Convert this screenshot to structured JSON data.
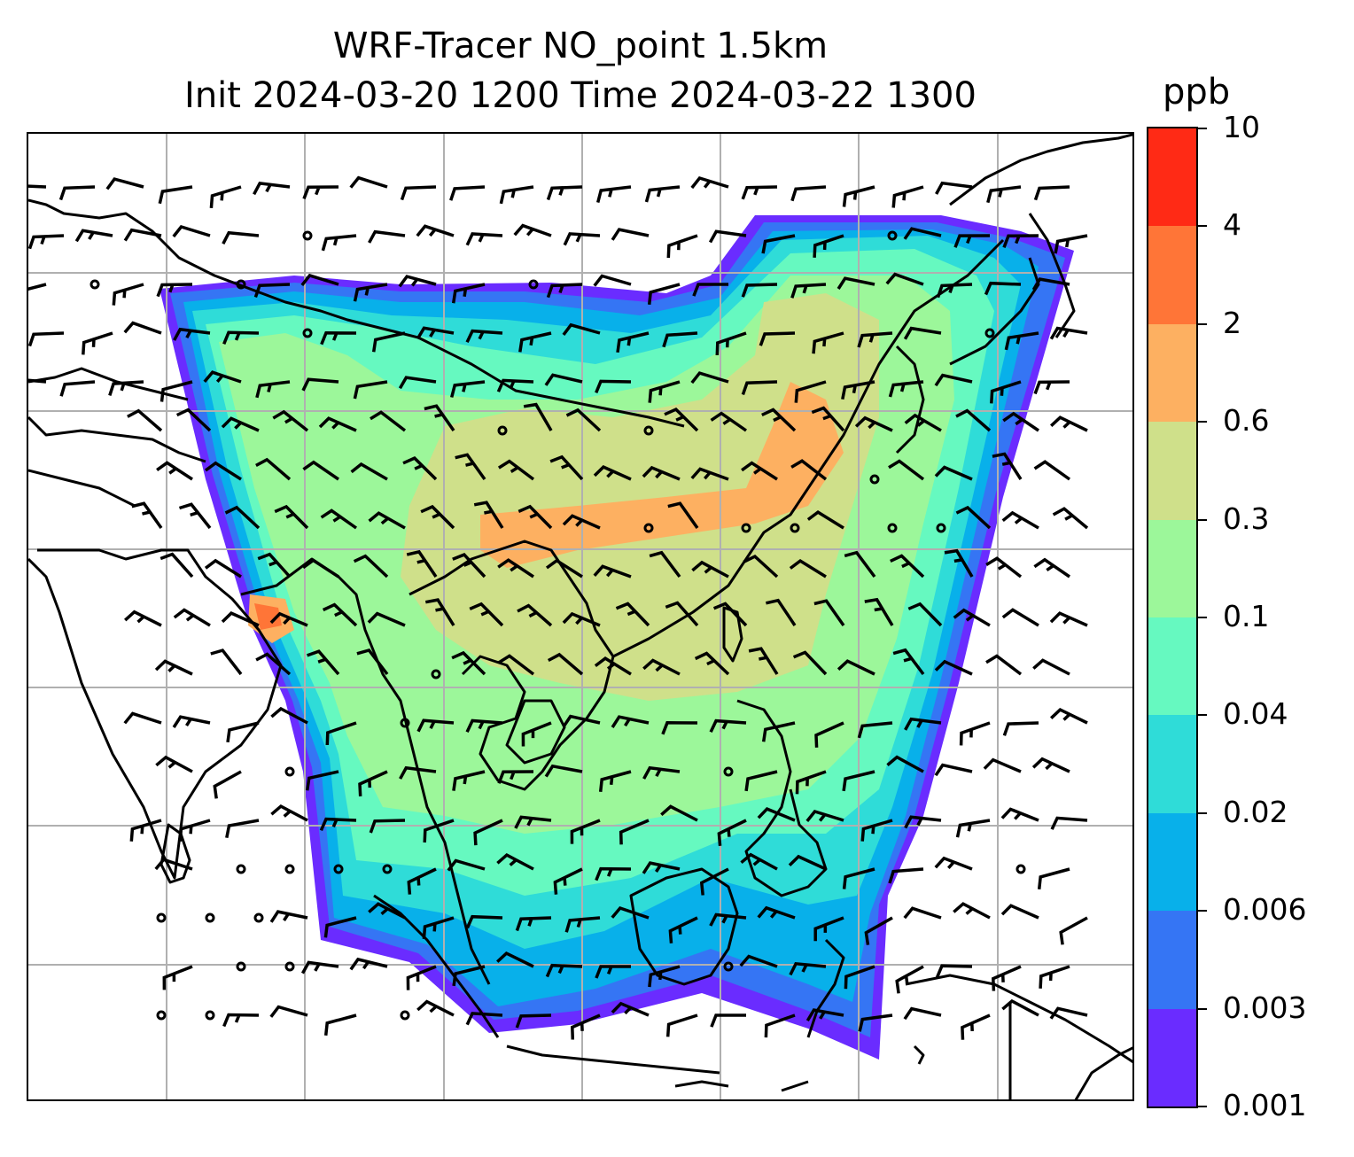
{
  "title": {
    "line1": "WRF-Tracer NO_point 1.5km",
    "line2": "Init 2024-03-20 1200 Time 2024-03-22 1300"
  },
  "colorbar": {
    "unit": "ppb",
    "levels": [
      {
        "label": "0.001",
        "color": "#6a2cff"
      },
      {
        "label": "0.003",
        "color": "#3575f4"
      },
      {
        "label": "0.006",
        "color": "#08b0ea"
      },
      {
        "label": "0.02",
        "color": "#2fdcd8"
      },
      {
        "label": "0.04",
        "color": "#66f9c0"
      },
      {
        "label": "0.1",
        "color": "#9cf79a"
      },
      {
        "label": "0.3",
        "color": "#cfe08a"
      },
      {
        "label": "0.6",
        "color": "#fdb061"
      },
      {
        "label": "2",
        "color": "#ff7537"
      },
      {
        "label": "4",
        "color": "#ff2a15"
      },
      {
        "label": "10",
        "color": null
      }
    ]
  },
  "map": {
    "gridlines": "on",
    "coastlines": "on",
    "wind_barbs": "on",
    "calm_circles": "on",
    "colors": {
      "grid": "#b0b0b0",
      "coast": "#000000",
      "barb": "#000000"
    }
  }
}
